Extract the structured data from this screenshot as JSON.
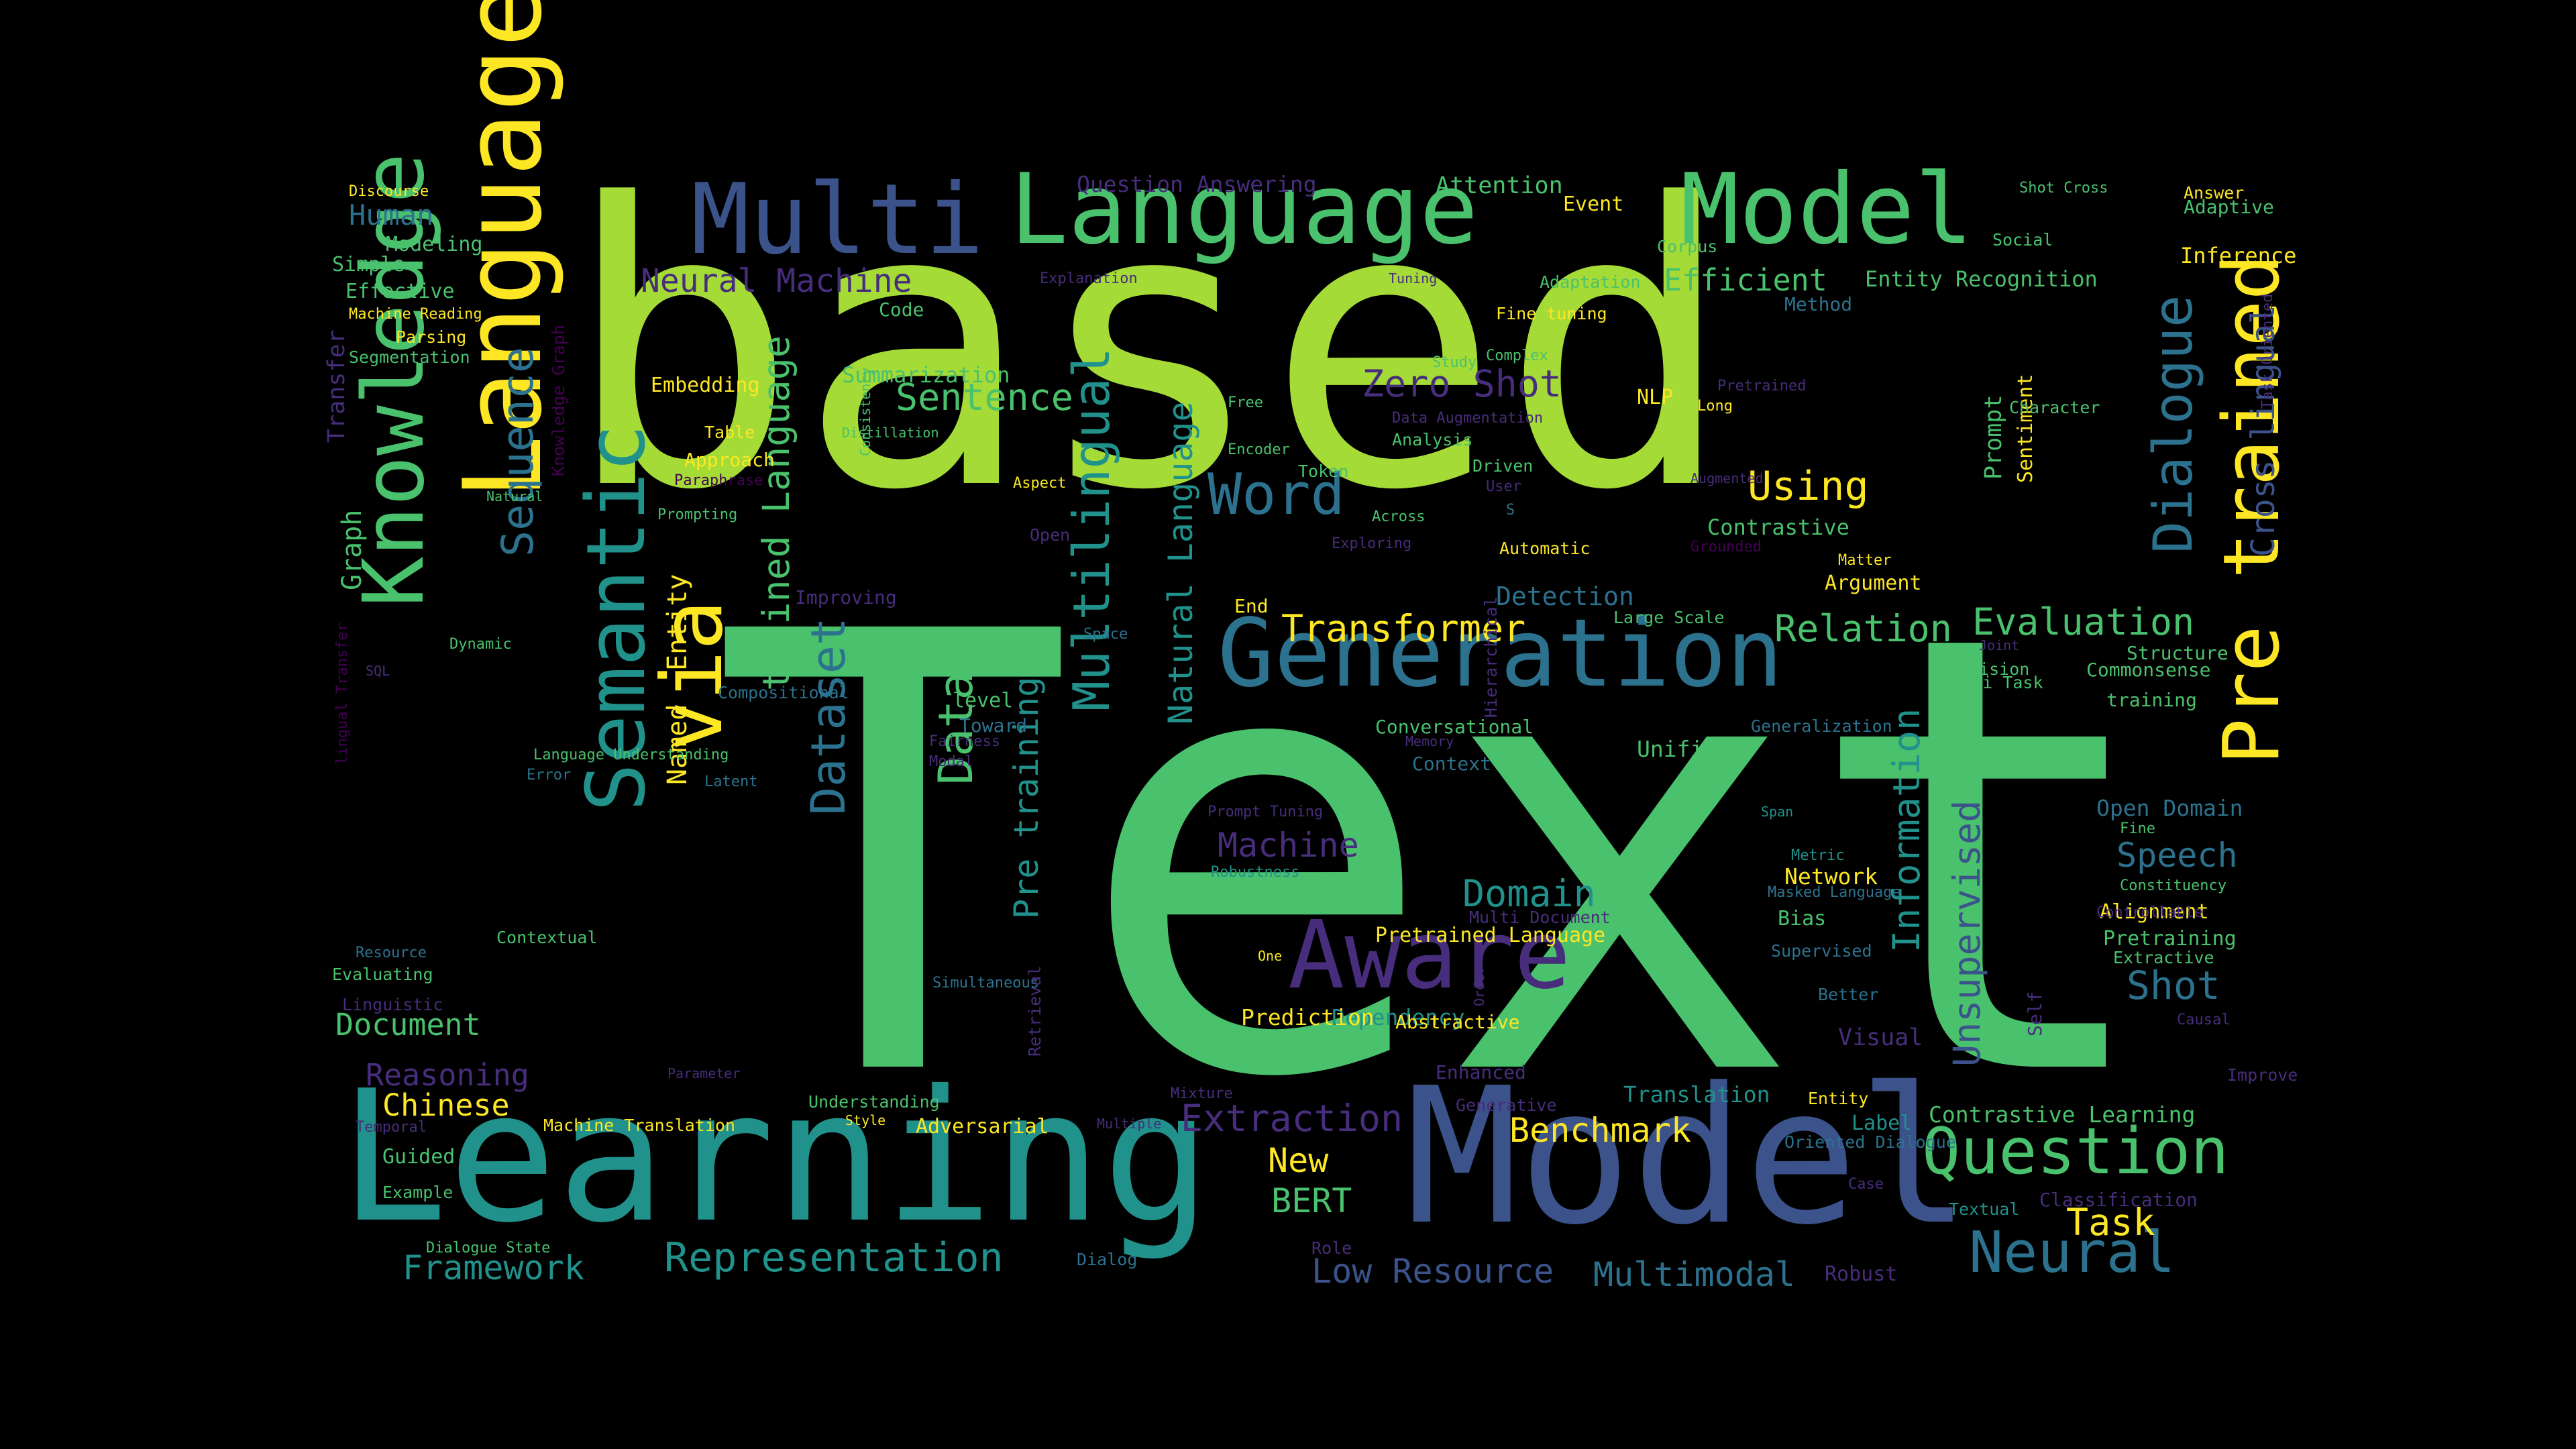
{
  "word_cloud": {
    "background": "#000000",
    "palette": {
      "yellow": "#fde725",
      "lime": "#a5db36",
      "green": "#4ac16d",
      "teal": "#21918c",
      "steel": "#2c728e",
      "slate": "#3b528b",
      "indigo": "#472d7b",
      "violet": "#440154"
    },
    "words": [
      "based",
      "Text",
      "Learning",
      "Model",
      "Language",
      "Multi",
      "Language",
      "Model",
      "Generation",
      "Knowledge",
      "Aware",
      "Semantic",
      "via",
      "Pre trained",
      "Question",
      "Neural",
      "Dialogue",
      "Word",
      "Sequence",
      "Multilingual",
      "Data",
      "Dataset",
      "trained Language",
      "Natural Language",
      "Pre training",
      "Representation",
      "Extraction",
      "Benchmark",
      "Transformer",
      "Relation",
      "Evaluation",
      "Using",
      "Zero Shot",
      "Sentence",
      "Domain",
      "Machine",
      "Framework",
      "Low Resource",
      "Multimodal",
      "Shot",
      "Speech",
      "Task",
      "Document",
      "Reasoning",
      "Chinese",
      "BERT",
      "New",
      "Unsupervised",
      "Information",
      "Cross lingual",
      "Neural Machine",
      "Graph",
      "Human",
      "Efficient",
      "Contrastive Learning",
      "Entity",
      "Named",
      "Summarization",
      "Contrastive",
      "Open Domain",
      "Prompt",
      "Sentiment",
      "Network",
      "Attention",
      "Question Answering",
      "Entity Recognition",
      "Method",
      "Inference",
      "Adaptive",
      "Answer",
      "Detection",
      "Argument",
      "Commonsense",
      "Structure",
      "training",
      "Unified",
      "Translation",
      "Visual",
      "Dependency",
      "Prediction",
      "Pretrained Language",
      "Bias",
      "Label",
      "Textual",
      "Classification",
      "Improve",
      "Causal",
      "Pretraining",
      "Extractive",
      "Alignment",
      "Constituency",
      "Fine",
      "Generalization",
      "Conversational",
      "Context",
      "level",
      "Toward",
      "Code",
      "Embedding",
      "Table",
      "Approach",
      "Prompting",
      "Paraphrase",
      "Distillation",
      "Consistency",
      "Aspect",
      "Open",
      "Improving",
      "Token",
      "Encoder",
      "Free",
      "Across",
      "Exploring",
      "Study",
      "Complex",
      "Fine tuning",
      "Pretrained",
      "Long",
      "NLP",
      "Data Augmentation",
      "Analysis",
      "Driven",
      "User",
      "S",
      "Automatic",
      "Grounded",
      "Augmented",
      "Matter",
      "Large Scale",
      "Joint",
      "Vision",
      "Multi Task",
      "Character",
      "Social",
      "Corpus",
      "Adaptation",
      "Event",
      "Tuning",
      "Explanation",
      "Shot Cross",
      "Task Oriented",
      "Discourse",
      "Modeling",
      "Simple",
      "Effective",
      "Machine Reading",
      "Parsing",
      "Segmentation",
      "Transfer",
      "Knowledge Graph",
      "Natural",
      "Dynamic",
      "SQL",
      "lingual Transfer",
      "Compositional",
      "Language Understanding",
      "Error",
      "Latent",
      "Fairness",
      "Modal",
      "Memory",
      "Hierarchical",
      "Prompt Tuning",
      "Robustness",
      "Multi Document",
      "Span",
      "Metric",
      "Masked Language",
      "Supervised",
      "Better",
      "Controllable",
      "Contextual",
      "Resource",
      "Evaluating",
      "Linguistic",
      "Simultaneous",
      "Parameter",
      "Retrieval",
      "One",
      "Abstractive",
      "Order",
      "Enhanced",
      "Self",
      "Mixture",
      "Generative",
      "Understanding",
      "Style",
      "Multiple",
      "Temporal",
      "Machine Translation",
      "Adversarial",
      "Guided",
      "Example",
      "Dialogue State",
      "Dialog",
      "Role",
      "Oriented Dialogue",
      "Entity",
      "Case",
      "Space",
      "End",
      "Robust"
    ]
  }
}
